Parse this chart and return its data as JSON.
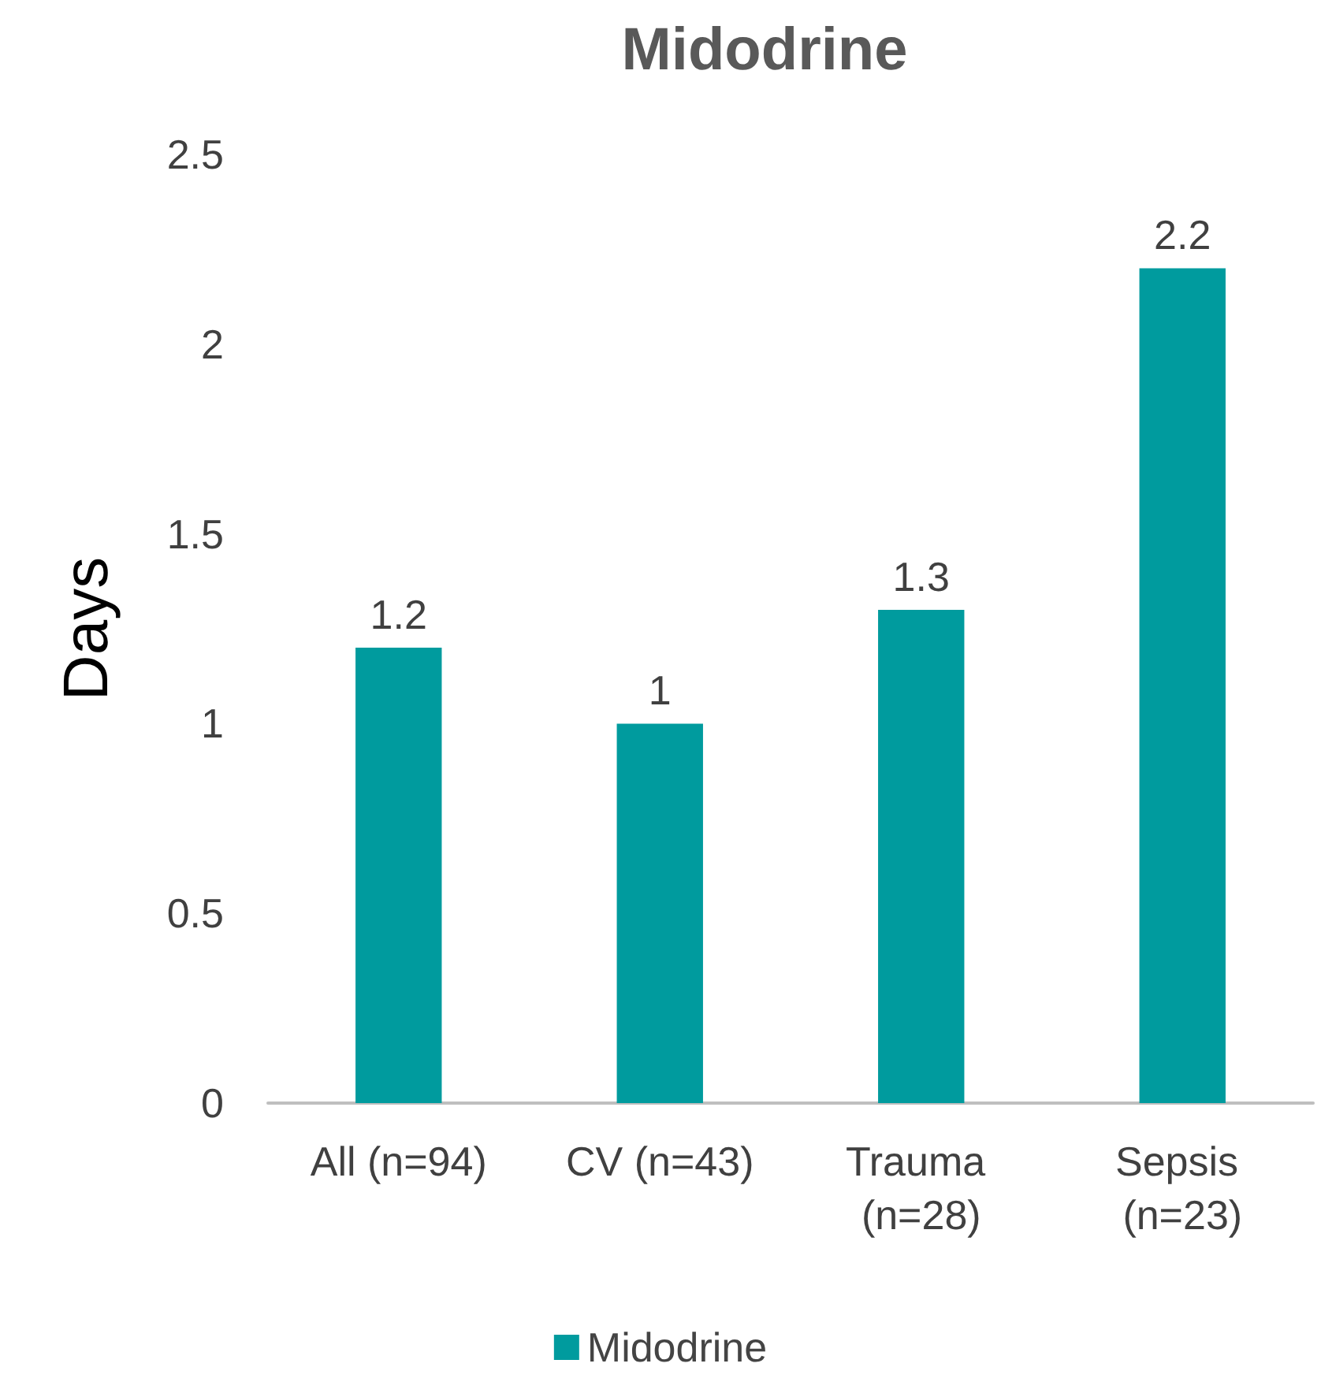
{
  "chart_data": {
    "type": "bar",
    "title": "Midodrine",
    "ylabel": "Days",
    "categories": [
      "All (n=94)",
      "CV (n=43)",
      "Trauma (n=28)",
      "Sepsis (n=23)"
    ],
    "series": [
      {
        "name": "Midodrine",
        "color": "#009b9e",
        "values": [
          1.2,
          1,
          1.3,
          2.2
        ]
      }
    ],
    "ylim": [
      0,
      2.5
    ],
    "yticks": [
      0,
      0.5,
      1,
      1.5,
      2,
      2.5
    ],
    "grid": false,
    "legend": "bottom",
    "data_labels": true
  }
}
